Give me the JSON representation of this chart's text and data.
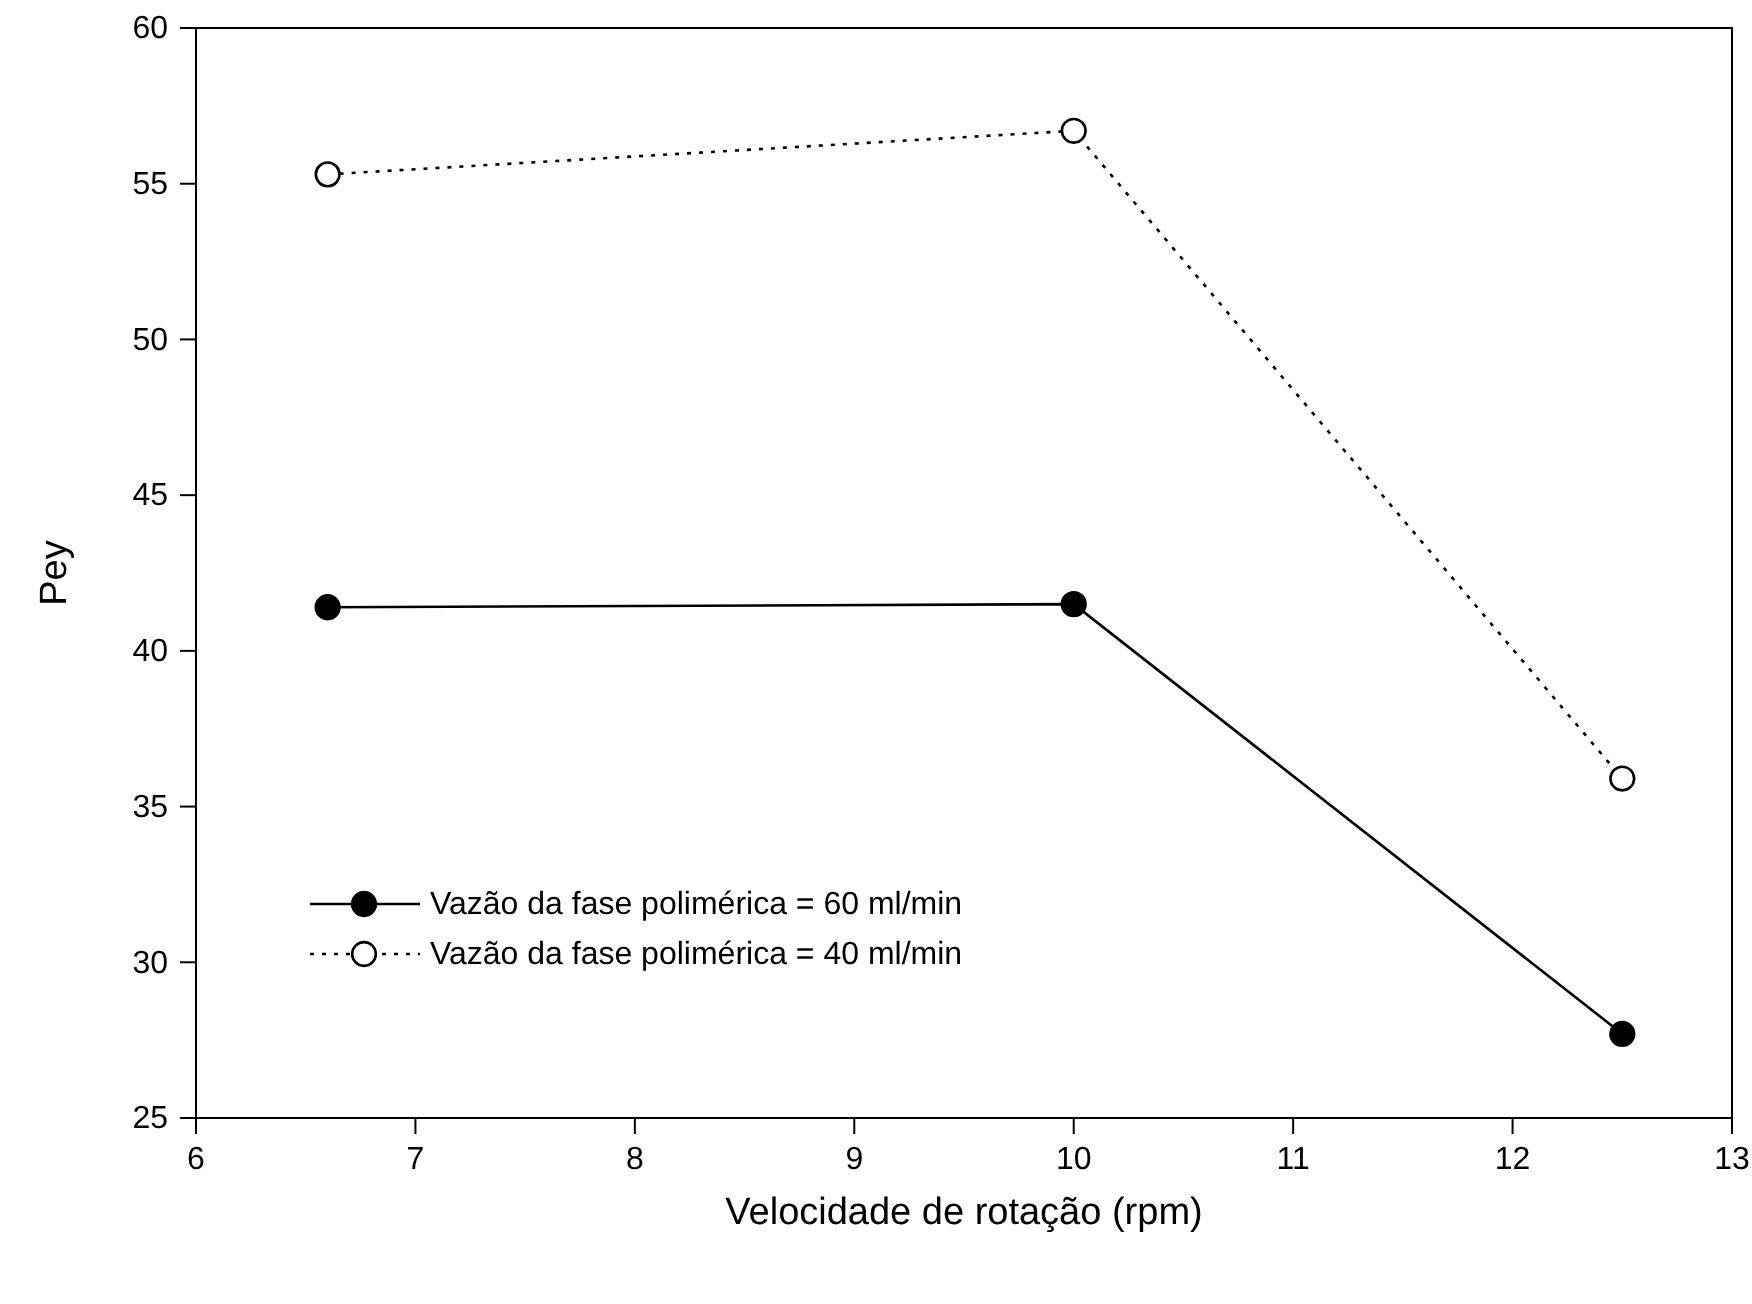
{
  "chart_data": {
    "type": "line",
    "xlabel": "Velocidade de rotação (rpm)",
    "ylabel": "Pey",
    "x": [
      6.6,
      10,
      12.5
    ],
    "series": [
      {
        "name": "Vazão da fase polimérica = 60 ml/min",
        "color": "#000000",
        "values": [
          41.4,
          41.5,
          27.7
        ],
        "marker": "circle",
        "line_style": "solid"
      },
      {
        "name": "Vazão da fase polimérica = 40 ml/min",
        "color": "#000000",
        "values": [
          55.3,
          56.7,
          35.9
        ],
        "marker": "circle",
        "line_style": "dotted"
      }
    ],
    "xlim": [
      6,
      13
    ],
    "xticks": [
      6,
      7,
      8,
      9,
      10,
      11,
      12,
      13
    ],
    "ylim": [
      25,
      60
    ],
    "yticks": [
      25,
      30,
      35,
      40,
      45,
      50,
      55,
      60
    ],
    "grid": false,
    "legend": "bottom left"
  }
}
